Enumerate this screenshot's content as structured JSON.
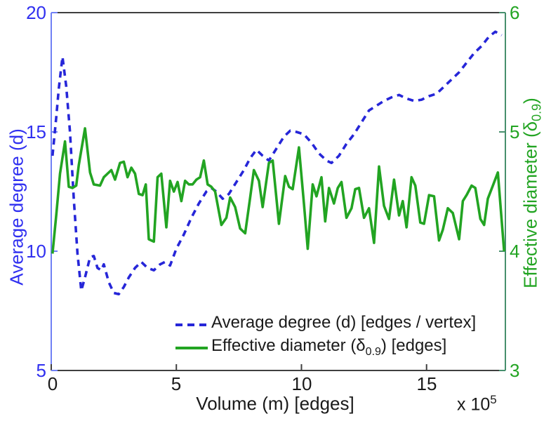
{
  "figure": {
    "background": "#ffffff",
    "x_axis": {
      "label": "Volume (m) [edges]",
      "multiplier_base": "x 10",
      "multiplier_exponent": "5",
      "ticks": [
        "0",
        "5",
        "10",
        "15"
      ],
      "tick_values": [
        0,
        5,
        10,
        15
      ],
      "range": [
        0,
        18.15
      ],
      "text_color": "#1a1a1a",
      "spine_color": "#3f3f3f"
    },
    "left_axis": {
      "label": "Average degree (d)",
      "ticks": [
        "20",
        "15",
        "10",
        "5"
      ],
      "tick_values": [
        20,
        15,
        10,
        5
      ],
      "range": [
        5,
        20
      ],
      "text_color": "#3030f0",
      "spine_color": "#7080f5"
    },
    "right_axis": {
      "label_prefix": "Effective diameter (δ",
      "label_sub": "0.9",
      "label_suffix": ")",
      "ticks": [
        "6",
        "5",
        "4",
        "3"
      ],
      "tick_values": [
        6,
        5,
        4,
        3
      ],
      "range": [
        3,
        6
      ],
      "text_color": "#22a422",
      "spine_color": "#478f6d"
    },
    "legend": {
      "items": [
        {
          "prefix": "Average degree (d) [edges / vertex]",
          "sub": "",
          "suffix": "",
          "color": "#2626d8",
          "style": "dashed"
        },
        {
          "prefix": "Effective diameter (δ",
          "sub": "0.9",
          "suffix": ") [edges]",
          "color": "#22a422",
          "style": "solid"
        }
      ]
    }
  },
  "chart_data": {
    "type": "line",
    "title": "",
    "xlabel": "Volume (m) [edges]",
    "x_unit_multiplier": "1e5",
    "x_range": [
      0,
      18.15
    ],
    "grid": false,
    "legend_position": "lower center, no box",
    "series": [
      {
        "name": "Average degree (d) [edges / vertex]",
        "axis": "left",
        "ylim": [
          5,
          20
        ],
        "color": "#2626d8",
        "style": "dashed",
        "x": [
          0.05,
          0.2,
          0.3,
          0.45,
          0.6,
          0.75,
          0.9,
          1.05,
          1.2,
          1.35,
          1.55,
          1.7,
          1.85,
          2.0,
          2.1,
          2.3,
          2.5,
          2.7,
          2.9,
          3.1,
          3.35,
          3.6,
          3.85,
          4.1,
          4.35,
          4.55,
          4.75,
          5.0,
          5.3,
          5.6,
          5.9,
          6.2,
          6.4,
          6.6,
          6.85,
          7.1,
          7.4,
          7.7,
          7.95,
          8.2,
          8.45,
          8.7,
          9.0,
          9.3,
          9.55,
          9.8,
          10.1,
          10.4,
          10.7,
          11.0,
          11.2,
          11.5,
          11.8,
          12.1,
          12.4,
          12.7,
          13.0,
          13.3,
          13.6,
          13.9,
          14.2,
          14.5,
          14.8,
          15.1,
          15.4,
          15.7,
          16.0,
          16.3,
          16.6,
          16.9,
          17.2,
          17.5,
          17.75,
          18.0
        ],
        "y": [
          14.0,
          15.6,
          16.8,
          18.15,
          16.9,
          15.0,
          12.2,
          9.9,
          8.35,
          8.9,
          9.75,
          9.8,
          9.3,
          9.2,
          9.45,
          8.7,
          8.25,
          8.2,
          8.5,
          8.9,
          9.3,
          9.55,
          9.3,
          9.2,
          9.45,
          9.55,
          9.4,
          10.1,
          10.7,
          11.4,
          12.0,
          12.5,
          12.65,
          12.5,
          12.2,
          12.4,
          12.9,
          13.4,
          13.9,
          14.25,
          14.0,
          13.8,
          14.3,
          14.8,
          15.05,
          15.0,
          14.9,
          14.55,
          14.1,
          13.8,
          13.7,
          14.0,
          14.5,
          14.9,
          15.4,
          15.9,
          16.1,
          16.3,
          16.45,
          16.55,
          16.4,
          16.3,
          16.35,
          16.5,
          16.6,
          16.9,
          17.2,
          17.5,
          17.9,
          18.3,
          18.6,
          19.0,
          19.2,
          19.05
        ]
      },
      {
        "name": "Effective diameter (δ0.9) [edges]",
        "axis": "right",
        "ylim": [
          3,
          6
        ],
        "color": "#22a422",
        "style": "solid",
        "x": [
          0.05,
          0.2,
          0.35,
          0.55,
          0.7,
          0.85,
          1.0,
          1.1,
          1.35,
          1.55,
          1.7,
          1.95,
          2.1,
          2.25,
          2.4,
          2.55,
          2.75,
          2.9,
          3.05,
          3.2,
          3.35,
          3.5,
          3.65,
          3.78,
          3.9,
          4.1,
          4.25,
          4.4,
          4.6,
          4.75,
          4.9,
          5.05,
          5.2,
          5.35,
          5.5,
          5.65,
          5.8,
          5.95,
          6.1,
          6.25,
          6.4,
          6.55,
          6.8,
          7.0,
          7.15,
          7.35,
          7.55,
          7.75,
          7.95,
          8.1,
          8.3,
          8.45,
          8.7,
          8.85,
          9.1,
          9.35,
          9.5,
          9.65,
          9.9,
          10.1,
          10.25,
          10.45,
          10.6,
          10.8,
          10.95,
          11.1,
          11.3,
          11.45,
          11.6,
          11.8,
          12.0,
          12.15,
          12.3,
          12.5,
          12.7,
          12.9,
          13.1,
          13.3,
          13.5,
          13.7,
          13.9,
          14.05,
          14.2,
          14.4,
          14.55,
          14.75,
          14.9,
          15.1,
          15.3,
          15.5,
          15.65,
          15.85,
          16.05,
          16.3,
          16.45,
          16.6,
          16.8,
          16.95,
          17.15,
          17.3,
          17.45,
          17.65,
          17.85,
          18.1
        ],
        "y": [
          3.98,
          4.3,
          4.65,
          4.92,
          4.54,
          4.53,
          4.55,
          4.72,
          5.03,
          4.66,
          4.56,
          4.55,
          4.62,
          4.65,
          4.68,
          4.6,
          4.74,
          4.75,
          4.62,
          4.7,
          4.65,
          4.48,
          4.47,
          4.56,
          4.1,
          4.08,
          4.62,
          4.65,
          4.2,
          4.59,
          4.5,
          4.58,
          4.42,
          4.59,
          4.56,
          4.56,
          4.6,
          4.62,
          4.76,
          4.56,
          4.54,
          4.5,
          4.22,
          4.28,
          4.45,
          4.37,
          4.19,
          4.15,
          4.45,
          4.68,
          4.59,
          4.37,
          4.74,
          4.76,
          4.23,
          4.63,
          4.54,
          4.52,
          4.87,
          4.4,
          4.02,
          4.56,
          4.46,
          4.62,
          4.25,
          4.53,
          4.4,
          4.53,
          4.58,
          4.28,
          4.36,
          4.52,
          4.53,
          4.28,
          4.36,
          4.07,
          4.71,
          4.38,
          4.27,
          4.6,
          4.3,
          4.42,
          4.2,
          4.62,
          4.55,
          4.24,
          4.23,
          4.47,
          4.46,
          4.09,
          4.18,
          4.36,
          4.32,
          4.1,
          4.42,
          4.47,
          4.55,
          4.53,
          4.27,
          4.22,
          4.44,
          4.55,
          4.66,
          4.0
        ]
      }
    ]
  }
}
